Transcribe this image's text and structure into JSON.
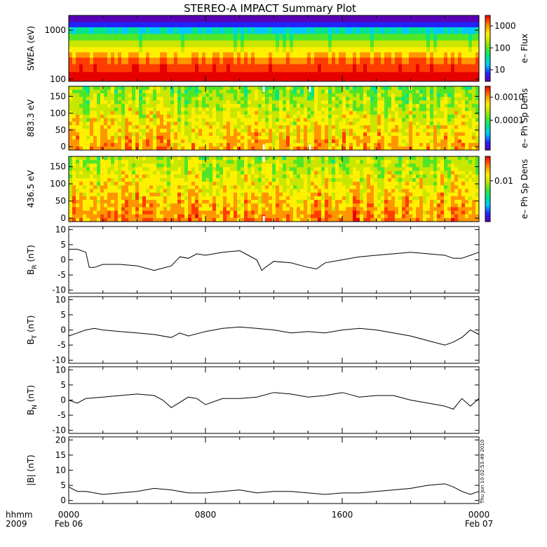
{
  "title": "STEREO-A IMPACT Summary Plot",
  "time_axis": {
    "row_labels": [
      "hhmm",
      "2009"
    ],
    "ticks": [
      {
        "time": "0000",
        "date": "Feb 06",
        "hour": 0
      },
      {
        "time": "0800",
        "date": "",
        "hour": 8
      },
      {
        "time": "1600",
        "date": "",
        "hour": 16
      },
      {
        "time": "0000",
        "date": "Feb 07",
        "hour": 24
      }
    ],
    "minor_tick_hours": 2
  },
  "timestamp": "Thu Jun 10 02:53:49 2010",
  "colors": {
    "colormap": [
      "#5a00b4",
      "#2222ff",
      "#00c8ff",
      "#00e68c",
      "#50e628",
      "#c8e600",
      "#fff000",
      "#ff9600",
      "#ff3c00",
      "#e60000"
    ],
    "gap": "#ffffff",
    "line": "#000000"
  },
  "chart_data": [
    {
      "type": "heatmap",
      "panel": "swea",
      "ylabel": "SWEA (eV)",
      "yscale": "log",
      "ylim": [
        90,
        2000
      ],
      "yticks": [
        {
          "value": 100,
          "label": "100"
        },
        {
          "value": 1000,
          "label": "1000"
        }
      ],
      "colorbar": {
        "label": "e– Flux",
        "scale": "log",
        "ticks": [
          {
            "value": 10,
            "label": "10"
          },
          {
            "value": 100,
            "label": "100"
          },
          {
            "value": 1000,
            "label": "1000"
          }
        ],
        "range": [
          3,
          3000
        ]
      },
      "description_values": {
        "low_energy_level": 0.92,
        "high_energy_level": 0.05
      }
    },
    {
      "type": "heatmap",
      "panel": "pad_883",
      "ylabel": "883.3 eV",
      "ylim": [
        -10,
        180
      ],
      "yticks": [
        0,
        50,
        100,
        150
      ],
      "colorbar": {
        "label": "e– Ph Sp Dens",
        "scale": "log",
        "ticks": [
          {
            "value": 0.0001,
            "label": "0.0001"
          },
          {
            "value": 0.001,
            "label": "0.0010"
          }
        ],
        "range": [
          5e-06,
          0.003
        ]
      },
      "gaps_hours": [
        [
          11.35,
          11.45
        ],
        [
          14.05,
          14.15
        ]
      ]
    },
    {
      "type": "heatmap",
      "panel": "pad_436",
      "ylabel": "436.5 eV",
      "ylim": [
        -10,
        180
      ],
      "yticks": [
        0,
        50,
        100,
        150
      ],
      "colorbar": {
        "label": "e– Ph Sp Dens",
        "scale": "log",
        "ticks": [
          {
            "value": 0.01,
            "label": "0.01"
          }
        ],
        "range": [
          0.0005,
          0.06
        ]
      },
      "gaps_hours": [
        [
          11.35,
          11.45
        ]
      ]
    },
    {
      "type": "line",
      "panel": "br",
      "ylabel": "B",
      "ylabel_sub": "R",
      "ylabel_unit": "(nT)",
      "ylim": [
        -11,
        11
      ],
      "yticks": [
        -10,
        -5,
        0,
        5,
        10
      ],
      "x": [
        0,
        0.5,
        1,
        1.2,
        1.5,
        2,
        3,
        4,
        5,
        6,
        6.5,
        7,
        7.5,
        8,
        9,
        10,
        10.5,
        11,
        11.3,
        11.5,
        12,
        13,
        14,
        14.5,
        15,
        16,
        17,
        18,
        19,
        20,
        21,
        22,
        22.5,
        23,
        23.5,
        24
      ],
      "y": [
        3.5,
        3.5,
        2.5,
        -2.5,
        -2.5,
        -1.5,
        -1.5,
        -2,
        -3.5,
        -2,
        1,
        0.5,
        2,
        1.5,
        2.5,
        3,
        1.5,
        0,
        -3.5,
        -2.5,
        -0.5,
        -1,
        -2.5,
        -3,
        -1,
        0,
        1,
        1.5,
        2,
        2.5,
        2,
        1.5,
        0.5,
        0.5,
        1.5,
        2.5
      ]
    },
    {
      "type": "line",
      "panel": "bt",
      "ylabel": "B",
      "ylabel_sub": "T",
      "ylabel_unit": "(nT)",
      "ylim": [
        -11,
        11
      ],
      "yticks": [
        -10,
        -5,
        0,
        5,
        10
      ],
      "x": [
        0,
        0.5,
        1,
        1.5,
        2,
        3,
        4,
        5,
        6,
        6.5,
        7,
        8,
        9,
        10,
        11,
        12,
        13,
        14,
        15,
        16,
        17,
        18,
        19,
        20,
        21,
        22,
        22.5,
        23,
        23.5,
        24
      ],
      "y": [
        -2,
        -1,
        0,
        0.5,
        0,
        -0.5,
        -1,
        -1.5,
        -2.5,
        -1,
        -2,
        -0.5,
        0.5,
        1,
        0.5,
        0,
        -1,
        -0.5,
        -1,
        0,
        0.5,
        0,
        -1,
        -2,
        -3.5,
        -5,
        -4,
        -2.5,
        0,
        -1.5
      ]
    },
    {
      "type": "line",
      "panel": "bn",
      "ylabel": "B",
      "ylabel_sub": "N",
      "ylabel_unit": "(nT)",
      "ylim": [
        -11,
        11
      ],
      "yticks": [
        -10,
        -5,
        0,
        5,
        10
      ],
      "x": [
        0,
        0.5,
        1,
        2,
        3,
        4,
        5,
        5.5,
        6,
        7,
        7.5,
        8,
        9,
        10,
        11,
        12,
        13,
        14,
        15,
        16,
        17,
        18,
        19,
        20,
        21,
        22,
        22.5,
        23,
        23.5,
        24
      ],
      "y": [
        0,
        -1,
        0.5,
        1,
        1.5,
        2,
        1.5,
        0,
        -2.5,
        1,
        0.5,
        -1.5,
        0.5,
        0.5,
        1,
        2.5,
        2,
        1,
        1.5,
        2.5,
        1,
        1.5,
        1.5,
        0,
        -1,
        -2,
        -3,
        0.5,
        -2,
        0.5
      ]
    },
    {
      "type": "line",
      "panel": "bmag",
      "ylabel": "|B|",
      "ylabel_unit": "(nT)",
      "ylim": [
        -1,
        21
      ],
      "yticks": [
        0,
        5,
        10,
        15,
        20
      ],
      "x": [
        0,
        0.5,
        1,
        2,
        3,
        4,
        5,
        6,
        7,
        8,
        9,
        10,
        11,
        12,
        13,
        14,
        15,
        16,
        17,
        18,
        19,
        20,
        21,
        22,
        22.5,
        23,
        23.5,
        24
      ],
      "y": [
        4.5,
        3,
        3,
        2,
        2.5,
        3,
        4,
        3.5,
        2.5,
        2.5,
        3,
        3.5,
        2.5,
        3,
        3,
        2.5,
        2,
        2.5,
        2.5,
        3,
        3.5,
        4,
        5,
        5.5,
        4.5,
        3,
        2,
        3
      ]
    }
  ]
}
